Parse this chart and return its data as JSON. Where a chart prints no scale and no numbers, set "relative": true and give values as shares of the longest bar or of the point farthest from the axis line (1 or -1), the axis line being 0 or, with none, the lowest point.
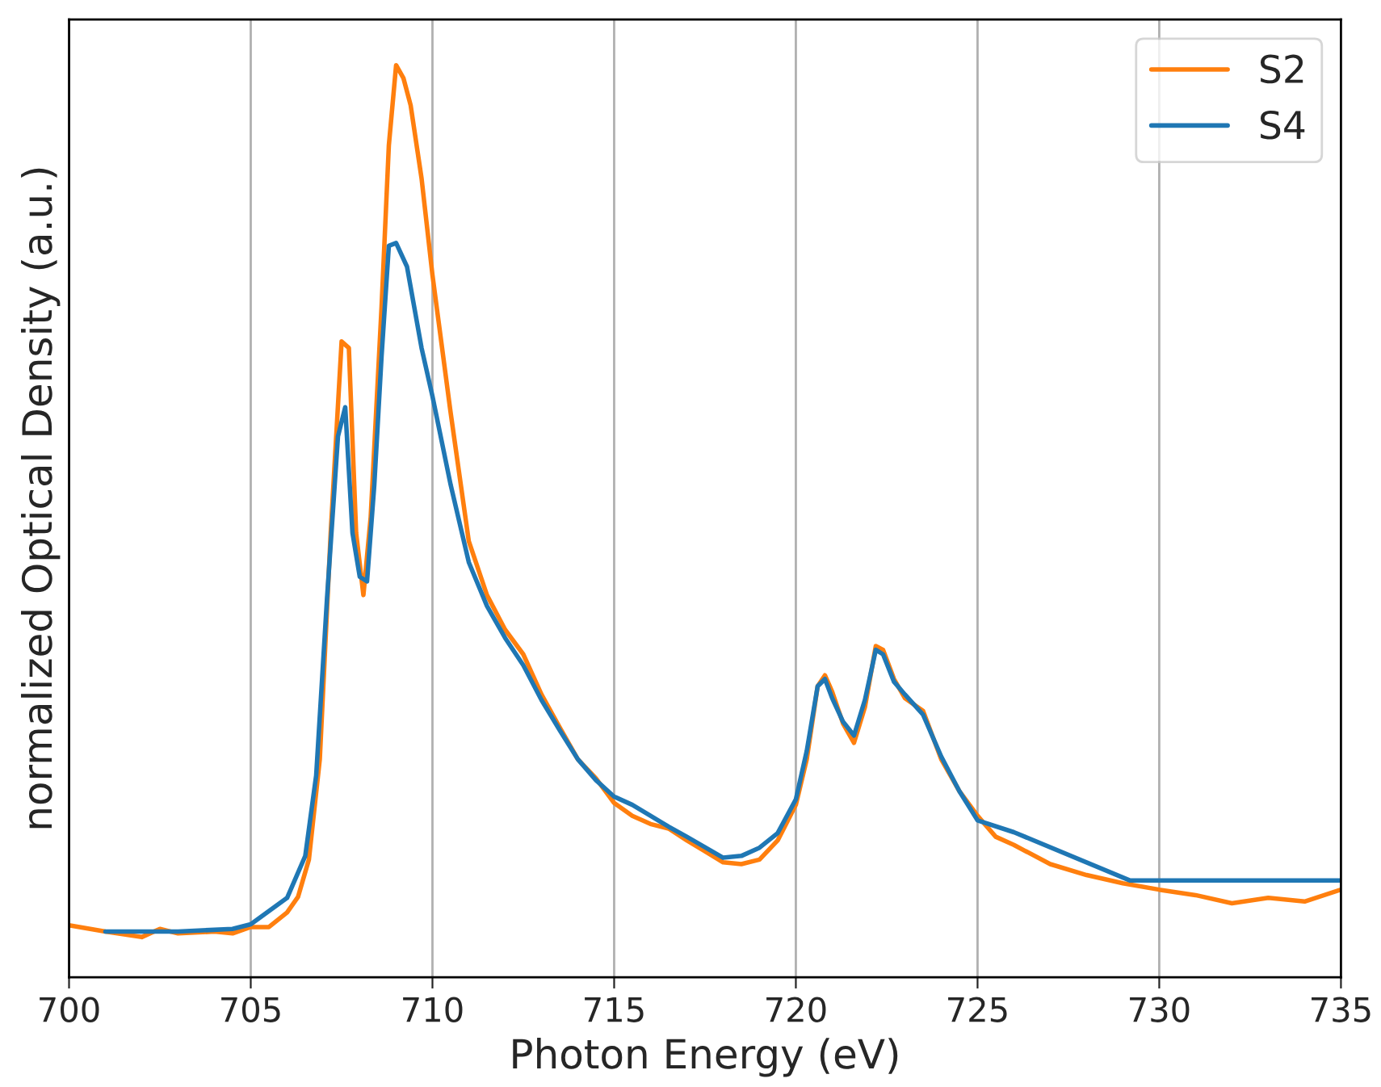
{
  "chart_data": {
    "type": "line",
    "xlabel": "Photon Energy (eV)",
    "ylabel": "normalized Optical Density (a.u.)",
    "relative": true,
    "xlim": [
      700,
      735
    ],
    "xticks": [
      700,
      705,
      710,
      715,
      720,
      725,
      730,
      735
    ],
    "grid": "x",
    "legend": "top right",
    "series": [
      {
        "name": "S2",
        "color": "#ff7f0e",
        "x": [
          700,
          701,
          702,
          702.5,
          703,
          704,
          704.5,
          705,
          705.5,
          706,
          706.3,
          706.6,
          706.9,
          707.2,
          707.5,
          707.7,
          707.9,
          708.1,
          708.3,
          708.6,
          708.8,
          709.0,
          709.2,
          709.4,
          709.7,
          710.0,
          710.5,
          711,
          711.5,
          712,
          712.5,
          713,
          713.5,
          714,
          714.5,
          715,
          715.5,
          716,
          716.5,
          717,
          717.5,
          718,
          718.5,
          719,
          719.5,
          720,
          720.3,
          720.6,
          720.8,
          721,
          721.3,
          721.6,
          721.9,
          722.2,
          722.4,
          722.7,
          723,
          723.5,
          724,
          724.5,
          725,
          725.5,
          726,
          727,
          728,
          729,
          730,
          731,
          732,
          733,
          734,
          735
        ],
        "values": [
          0.057,
          0.05,
          0.044,
          0.053,
          0.048,
          0.05,
          0.048,
          0.055,
          0.055,
          0.071,
          0.088,
          0.129,
          0.239,
          0.487,
          0.697,
          0.69,
          0.487,
          0.419,
          0.504,
          0.735,
          0.912,
          1.0,
          0.986,
          0.956,
          0.876,
          0.77,
          0.619,
          0.478,
          0.419,
          0.381,
          0.354,
          0.31,
          0.274,
          0.239,
          0.218,
          0.191,
          0.177,
          0.168,
          0.163,
          0.15,
          0.138,
          0.126,
          0.124,
          0.129,
          0.15,
          0.189,
          0.239,
          0.319,
          0.331,
          0.313,
          0.278,
          0.257,
          0.296,
          0.363,
          0.359,
          0.327,
          0.306,
          0.292,
          0.239,
          0.204,
          0.177,
          0.154,
          0.145,
          0.124,
          0.112,
          0.103,
          0.096,
          0.09,
          0.081,
          0.087,
          0.083,
          0.096
        ]
      },
      {
        "name": "S4",
        "color": "#1f77b4",
        "x": [
          701,
          703,
          704.5,
          705,
          706,
          706.5,
          706.8,
          707.1,
          707.4,
          707.6,
          707.8,
          708,
          708.2,
          708.4,
          708.6,
          708.8,
          709,
          709.3,
          709.7,
          710,
          710.5,
          711,
          711.5,
          712,
          712.5,
          713,
          713.5,
          714,
          714.5,
          715,
          715.5,
          716,
          716.5,
          717,
          718,
          718.5,
          719,
          719.5,
          720,
          720.3,
          720.6,
          720.8,
          721,
          721.3,
          721.6,
          721.9,
          722.2,
          722.4,
          722.7,
          723,
          723.5,
          724,
          724.5,
          725,
          726,
          729.2,
          735
        ],
        "values": [
          0.05,
          0.05,
          0.053,
          0.058,
          0.087,
          0.133,
          0.221,
          0.416,
          0.593,
          0.625,
          0.487,
          0.439,
          0.434,
          0.54,
          0.681,
          0.802,
          0.805,
          0.779,
          0.69,
          0.637,
          0.54,
          0.455,
          0.407,
          0.372,
          0.342,
          0.304,
          0.271,
          0.239,
          0.216,
          0.198,
          0.189,
          0.177,
          0.165,
          0.154,
          0.131,
          0.133,
          0.142,
          0.158,
          0.195,
          0.248,
          0.319,
          0.327,
          0.306,
          0.28,
          0.265,
          0.304,
          0.359,
          0.354,
          0.324,
          0.31,
          0.288,
          0.242,
          0.204,
          0.172,
          0.159,
          0.106,
          0.106
        ]
      }
    ]
  }
}
